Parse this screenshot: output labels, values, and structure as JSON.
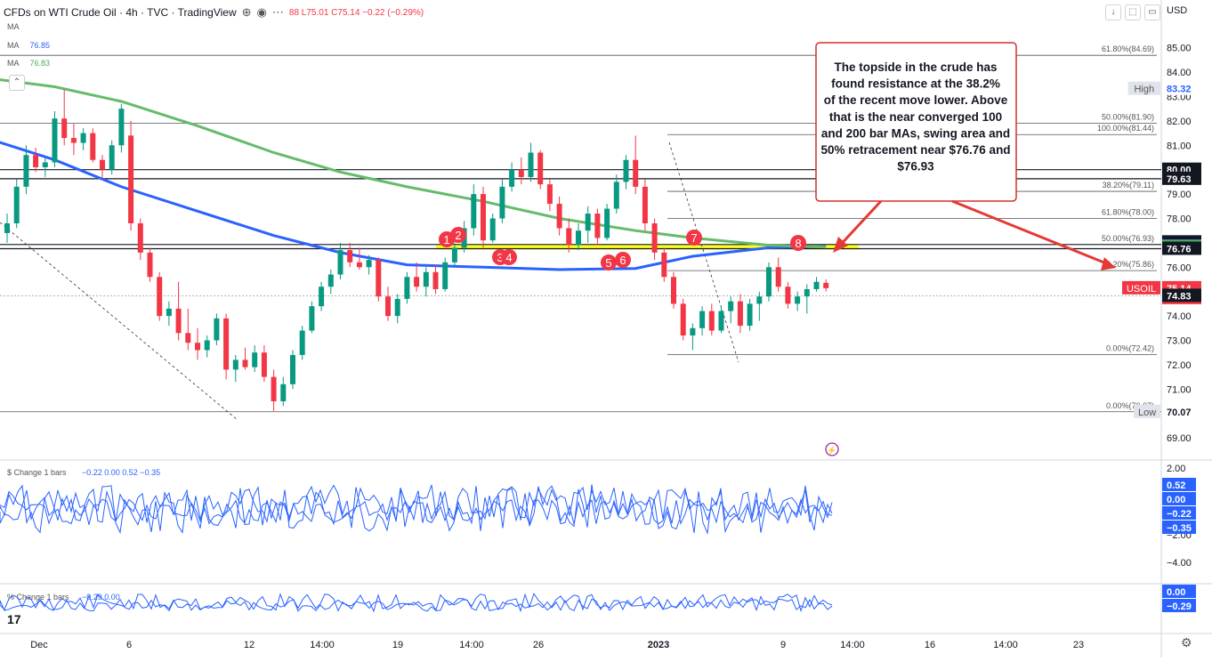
{
  "header": {
    "title": "CFDs on WTI Crude Oil · 4h · TVC · TradingView",
    "ohlc": "88 L75.01 C75.14 −0.22 (−0.29%)",
    "ma_rows": [
      {
        "label": "MA",
        "value": ""
      },
      {
        "label": "MA",
        "value": "76.85"
      },
      {
        "label": "MA",
        "value": "76.83"
      }
    ]
  },
  "chart_data": {
    "type": "candlestick",
    "symbol": "USOIL",
    "currency": "USD",
    "x_tick_labels": [
      "Dec",
      "6",
      "12",
      "14:00",
      "19",
      "14:00",
      "26",
      "2023",
      "9",
      "14:00",
      "16",
      "14:00",
      "23"
    ],
    "y_tick_labels": [
      "85.00",
      "84.00",
      "83.00",
      "82.00",
      "81.00",
      "80.00",
      "79.00",
      "78.00",
      "77.00",
      "76.00",
      "75.00",
      "74.00",
      "73.00",
      "72.00",
      "71.00",
      "70.00",
      "69.00"
    ],
    "ylim": [
      68.6,
      85.6
    ],
    "candles": [
      {
        "x": 0,
        "o": 77.4,
        "h": 78.2,
        "l": 77.0,
        "c": 77.8
      },
      {
        "x": 1,
        "o": 77.8,
        "h": 79.6,
        "l": 77.6,
        "c": 79.3
      },
      {
        "x": 2,
        "o": 79.3,
        "h": 81.0,
        "l": 79.0,
        "c": 80.6
      },
      {
        "x": 3,
        "o": 80.6,
        "h": 80.9,
        "l": 79.9,
        "c": 80.1
      },
      {
        "x": 4,
        "o": 80.1,
        "h": 80.5,
        "l": 79.7,
        "c": 80.3
      },
      {
        "x": 5,
        "o": 80.3,
        "h": 82.4,
        "l": 80.1,
        "c": 82.1
      },
      {
        "x": 6,
        "o": 82.1,
        "h": 83.3,
        "l": 81.0,
        "c": 81.3
      },
      {
        "x": 7,
        "o": 81.3,
        "h": 81.9,
        "l": 80.6,
        "c": 81.1
      },
      {
        "x": 8,
        "o": 81.1,
        "h": 81.7,
        "l": 80.8,
        "c": 81.5
      },
      {
        "x": 9,
        "o": 81.5,
        "h": 81.7,
        "l": 80.3,
        "c": 80.4
      },
      {
        "x": 10,
        "o": 80.4,
        "h": 80.6,
        "l": 79.6,
        "c": 80.0
      },
      {
        "x": 11,
        "o": 80.0,
        "h": 81.2,
        "l": 79.8,
        "c": 81.0
      },
      {
        "x": 12,
        "o": 81.0,
        "h": 82.7,
        "l": 80.7,
        "c": 82.5
      },
      {
        "x": 13,
        "o": 81.4,
        "h": 82.0,
        "l": 77.5,
        "c": 77.8
      },
      {
        "x": 14,
        "o": 77.8,
        "h": 78.0,
        "l": 76.3,
        "c": 76.6
      },
      {
        "x": 15,
        "o": 76.6,
        "h": 76.8,
        "l": 75.4,
        "c": 75.6
      },
      {
        "x": 16,
        "o": 75.6,
        "h": 75.8,
        "l": 73.8,
        "c": 74.0
      },
      {
        "x": 17,
        "o": 74.0,
        "h": 74.6,
        "l": 73.6,
        "c": 74.3
      },
      {
        "x": 18,
        "o": 74.3,
        "h": 75.4,
        "l": 73.0,
        "c": 73.3
      },
      {
        "x": 19,
        "o": 73.3,
        "h": 74.3,
        "l": 72.6,
        "c": 72.9
      },
      {
        "x": 20,
        "o": 72.9,
        "h": 73.5,
        "l": 72.2,
        "c": 72.6
      },
      {
        "x": 21,
        "o": 72.6,
        "h": 73.2,
        "l": 72.3,
        "c": 73.0
      },
      {
        "x": 22,
        "o": 73.0,
        "h": 74.1,
        "l": 72.8,
        "c": 73.9
      },
      {
        "x": 23,
        "o": 73.9,
        "h": 74.1,
        "l": 71.4,
        "c": 71.8
      },
      {
        "x": 24,
        "o": 71.8,
        "h": 72.4,
        "l": 71.3,
        "c": 72.2
      },
      {
        "x": 25,
        "o": 72.2,
        "h": 72.7,
        "l": 71.8,
        "c": 71.9
      },
      {
        "x": 26,
        "o": 71.9,
        "h": 72.8,
        "l": 71.7,
        "c": 72.5
      },
      {
        "x": 27,
        "o": 72.5,
        "h": 72.8,
        "l": 71.3,
        "c": 71.5
      },
      {
        "x": 28,
        "o": 71.5,
        "h": 71.8,
        "l": 70.1,
        "c": 70.5
      },
      {
        "x": 29,
        "o": 70.5,
        "h": 71.5,
        "l": 70.3,
        "c": 71.2
      },
      {
        "x": 30,
        "o": 71.2,
        "h": 72.6,
        "l": 71.0,
        "c": 72.4
      },
      {
        "x": 31,
        "o": 72.4,
        "h": 73.6,
        "l": 72.2,
        "c": 73.4
      },
      {
        "x": 32,
        "o": 73.4,
        "h": 74.6,
        "l": 73.3,
        "c": 74.4
      },
      {
        "x": 33,
        "o": 74.4,
        "h": 75.4,
        "l": 74.2,
        "c": 75.2
      },
      {
        "x": 34,
        "o": 75.2,
        "h": 75.9,
        "l": 74.9,
        "c": 75.7
      },
      {
        "x": 35,
        "o": 75.7,
        "h": 77.0,
        "l": 75.5,
        "c": 76.7
      },
      {
        "x": 36,
        "o": 76.7,
        "h": 77.0,
        "l": 76.0,
        "c": 76.2
      },
      {
        "x": 37,
        "o": 76.2,
        "h": 76.8,
        "l": 75.9,
        "c": 76.0
      },
      {
        "x": 38,
        "o": 76.0,
        "h": 76.5,
        "l": 75.7,
        "c": 76.3
      },
      {
        "x": 39,
        "o": 76.3,
        "h": 76.4,
        "l": 74.6,
        "c": 74.8
      },
      {
        "x": 40,
        "o": 74.8,
        "h": 75.2,
        "l": 73.8,
        "c": 74.0
      },
      {
        "x": 41,
        "o": 74.0,
        "h": 74.9,
        "l": 73.7,
        "c": 74.7
      },
      {
        "x": 42,
        "o": 74.7,
        "h": 75.8,
        "l": 74.5,
        "c": 75.6
      },
      {
        "x": 43,
        "o": 75.6,
        "h": 76.2,
        "l": 75.0,
        "c": 75.2
      },
      {
        "x": 44,
        "o": 75.2,
        "h": 76.0,
        "l": 74.8,
        "c": 75.8
      },
      {
        "x": 45,
        "o": 75.8,
        "h": 76.1,
        "l": 74.9,
        "c": 75.1
      },
      {
        "x": 46,
        "o": 75.1,
        "h": 76.4,
        "l": 75.0,
        "c": 76.2
      },
      {
        "x": 47,
        "o": 76.2,
        "h": 77.0,
        "l": 76.0,
        "c": 76.8
      },
      {
        "x": 48,
        "o": 76.8,
        "h": 77.9,
        "l": 76.6,
        "c": 77.6
      },
      {
        "x": 49,
        "o": 77.6,
        "h": 79.4,
        "l": 77.3,
        "c": 79.0
      },
      {
        "x": 50,
        "o": 79.0,
        "h": 79.3,
        "l": 76.8,
        "c": 77.1
      },
      {
        "x": 51,
        "o": 77.1,
        "h": 78.2,
        "l": 77.0,
        "c": 78.0
      },
      {
        "x": 52,
        "o": 78.0,
        "h": 79.6,
        "l": 77.8,
        "c": 79.3
      },
      {
        "x": 53,
        "o": 79.3,
        "h": 80.3,
        "l": 79.1,
        "c": 80.0
      },
      {
        "x": 54,
        "o": 80.0,
        "h": 80.5,
        "l": 79.4,
        "c": 79.7
      },
      {
        "x": 55,
        "o": 79.7,
        "h": 81.1,
        "l": 79.5,
        "c": 80.7
      },
      {
        "x": 56,
        "o": 80.7,
        "h": 80.8,
        "l": 79.2,
        "c": 79.4
      },
      {
        "x": 57,
        "o": 79.4,
        "h": 79.6,
        "l": 78.3,
        "c": 78.6
      },
      {
        "x": 58,
        "o": 78.6,
        "h": 78.9,
        "l": 77.3,
        "c": 77.6
      },
      {
        "x": 59,
        "o": 77.6,
        "h": 78.0,
        "l": 76.6,
        "c": 76.9
      },
      {
        "x": 60,
        "o": 76.9,
        "h": 77.8,
        "l": 76.7,
        "c": 77.5
      },
      {
        "x": 61,
        "o": 77.5,
        "h": 78.5,
        "l": 77.0,
        "c": 78.2
      },
      {
        "x": 62,
        "o": 78.2,
        "h": 78.4,
        "l": 76.9,
        "c": 77.2
      },
      {
        "x": 63,
        "o": 77.2,
        "h": 78.6,
        "l": 77.1,
        "c": 78.4
      },
      {
        "x": 64,
        "o": 78.4,
        "h": 79.8,
        "l": 78.2,
        "c": 79.5
      },
      {
        "x": 65,
        "o": 79.5,
        "h": 80.6,
        "l": 79.2,
        "c": 80.4
      },
      {
        "x": 66,
        "o": 80.4,
        "h": 81.4,
        "l": 79.0,
        "c": 79.3
      },
      {
        "x": 67,
        "o": 79.3,
        "h": 79.6,
        "l": 77.5,
        "c": 77.8
      },
      {
        "x": 68,
        "o": 77.8,
        "h": 78.0,
        "l": 76.3,
        "c": 76.6
      },
      {
        "x": 69,
        "o": 76.6,
        "h": 76.8,
        "l": 75.4,
        "c": 75.6
      },
      {
        "x": 70,
        "o": 75.6,
        "h": 75.8,
        "l": 74.3,
        "c": 74.5
      },
      {
        "x": 71,
        "o": 74.5,
        "h": 74.7,
        "l": 73.0,
        "c": 73.2
      },
      {
        "x": 72,
        "o": 73.2,
        "h": 73.7,
        "l": 72.6,
        "c": 73.5
      },
      {
        "x": 73,
        "o": 73.5,
        "h": 74.4,
        "l": 73.2,
        "c": 74.2
      },
      {
        "x": 74,
        "o": 74.2,
        "h": 74.5,
        "l": 73.2,
        "c": 73.4
      },
      {
        "x": 75,
        "o": 73.4,
        "h": 74.4,
        "l": 73.3,
        "c": 74.2
      },
      {
        "x": 76,
        "o": 74.2,
        "h": 74.8,
        "l": 73.7,
        "c": 74.6
      },
      {
        "x": 77,
        "o": 74.6,
        "h": 74.9,
        "l": 73.3,
        "c": 73.6
      },
      {
        "x": 78,
        "o": 73.6,
        "h": 74.7,
        "l": 73.4,
        "c": 74.5
      },
      {
        "x": 79,
        "o": 74.5,
        "h": 75.0,
        "l": 73.8,
        "c": 74.8
      },
      {
        "x": 80,
        "o": 74.8,
        "h": 76.2,
        "l": 74.6,
        "c": 76.0
      },
      {
        "x": 81,
        "o": 76.0,
        "h": 76.4,
        "l": 75.0,
        "c": 75.2
      },
      {
        "x": 82,
        "o": 75.2,
        "h": 75.4,
        "l": 74.3,
        "c": 74.5
      },
      {
        "x": 83,
        "o": 74.5,
        "h": 75.0,
        "l": 74.2,
        "c": 74.8
      },
      {
        "x": 84,
        "o": 74.8,
        "h": 75.3,
        "l": 74.1,
        "c": 75.1
      },
      {
        "x": 85,
        "o": 75.1,
        "h": 75.6,
        "l": 75.0,
        "c": 75.4
      },
      {
        "x": 86,
        "o": 75.36,
        "h": 75.5,
        "l": 75.01,
        "c": 75.14
      }
    ],
    "moving_averages": [
      {
        "label": "MA",
        "value": 76.85,
        "color": "#2962ff",
        "points": [
          [
            -3,
            81.4
          ],
          [
            5,
            80.4
          ],
          [
            12,
            79.3
          ],
          [
            20,
            78.3
          ],
          [
            28,
            77.3
          ],
          [
            35,
            76.6
          ],
          [
            42,
            76.1
          ],
          [
            50,
            76.0
          ],
          [
            58,
            75.9
          ],
          [
            66,
            75.95
          ],
          [
            72,
            76.45
          ],
          [
            80,
            76.8
          ],
          [
            86,
            76.85
          ]
        ]
      },
      {
        "label": "MA",
        "value": 76.83,
        "color": "#66bb6a",
        "points": [
          [
            -3,
            83.8
          ],
          [
            5,
            83.4
          ],
          [
            12,
            82.8
          ],
          [
            20,
            81.8
          ],
          [
            28,
            80.7
          ],
          [
            35,
            79.9
          ],
          [
            42,
            79.3
          ],
          [
            50,
            78.7
          ],
          [
            58,
            78.0
          ],
          [
            66,
            77.5
          ],
          [
            72,
            77.2
          ],
          [
            80,
            76.9
          ],
          [
            86,
            76.83
          ]
        ]
      }
    ],
    "fib_levels": [
      {
        "label": "61.80%(84.69)",
        "price": 84.69
      },
      {
        "label": "50.00%(81.90)",
        "price": 81.9
      },
      {
        "label": "100.00%(81.44)",
        "price": 81.44
      },
      {
        "label": "38.20%(79.11)",
        "price": 79.11
      },
      {
        "label": "61.80%(78.00)",
        "price": 78.0
      },
      {
        "label": "50.00%(76.93)",
        "price": 76.93
      },
      {
        "label": "38.20%(75.86)",
        "price": 75.86
      },
      {
        "label": "0.00%(72.42)",
        "price": 72.42
      },
      {
        "label": "0.00%(70.07)",
        "price": 70.07
      }
    ],
    "horizontal_lines": [
      80.0,
      79.63,
      76.93,
      76.76,
      70.07
    ],
    "swing_markers": [
      "1",
      "2",
      "3",
      "4",
      "5",
      "6",
      "7",
      "8"
    ],
    "price_badges": [
      {
        "value": "83.32",
        "side": "High",
        "bg": "#ffffff",
        "fg": "#2962ff"
      },
      {
        "value": "80.00",
        "side": "",
        "bg": "#131722",
        "fg": "#ffffff"
      },
      {
        "value": "79.63",
        "side": "",
        "bg": "#131722",
        "fg": "#ffffff"
      },
      {
        "value": "77.02",
        "side": "",
        "bg": "#131722",
        "fg": "#ffffff"
      },
      {
        "value": "76.85",
        "side": "",
        "bg": "#2962ff",
        "fg": "#ffffff"
      },
      {
        "value": "76.83",
        "side": "",
        "bg": "#4caf50",
        "fg": "#ffffff"
      },
      {
        "value": "76.76",
        "side": "",
        "bg": "#131722",
        "fg": "#ffffff"
      },
      {
        "value": "75.14",
        "side": "USOIL",
        "bg": "#f23645",
        "fg": "#ffffff",
        "sub": "02:23:00"
      },
      {
        "value": "74.83",
        "side": "",
        "bg": "#131722",
        "fg": "#ffffff"
      },
      {
        "value": "70.07",
        "side": "Low",
        "bg": "#ffffff",
        "fg": "#131722"
      }
    ],
    "annotation": "The topside in the crude has found resistance at the 38.2% of the recent move lower. Above that is the near converged 100 and 200 bar MAs, swing area and 50% retracement near $76.76 and $76.93",
    "colors": {
      "up": "#089981",
      "down": "#f23645",
      "highlight": "#ffff00",
      "marker": "#f23645",
      "annotation_border": "#d32f2f"
    }
  },
  "indicators": [
    {
      "title": "$ Change 1 bars",
      "values": "−0.22  0.00  0.52  −0.35",
      "axis": [
        "2.00",
        "−2.00",
        "−4.00"
      ],
      "badges": [
        {
          "value": "0.52",
          "bg": "#2962ff"
        },
        {
          "value": "0.00",
          "bg": "#2962ff"
        },
        {
          "value": "−0.22",
          "bg": "#2962ff"
        },
        {
          "value": "−0.35",
          "bg": "#2962ff"
        }
      ]
    },
    {
      "title": "% Change 1 bars",
      "values": "−0.29  0.00",
      "axis": [],
      "badges": [
        {
          "value": "0.00",
          "bg": "#2962ff"
        },
        {
          "value": "−0.29",
          "bg": "#2962ff"
        }
      ]
    }
  ],
  "axis_currency_label": "USD",
  "tv_logo": "17"
}
